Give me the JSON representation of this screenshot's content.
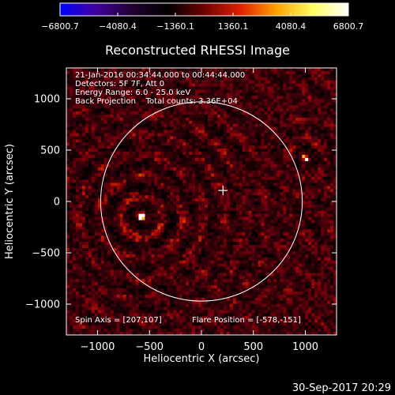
{
  "chart_data": {
    "type": "heatmap",
    "title": "Reconstructed RHESSI Image",
    "xlabel": "Heliocentric X (arcsec)",
    "ylabel": "Heliocentric Y (arcsec)",
    "xlim": [
      -1300,
      1300
    ],
    "ylim": [
      -1300,
      1300
    ],
    "xticks": [
      -1000,
      -500,
      0,
      500,
      1000
    ],
    "yticks": [
      -1000,
      -500,
      0,
      500,
      1000
    ],
    "xtick_labels": [
      "−1000",
      "−500",
      "0",
      "500",
      "1000"
    ],
    "ytick_labels": [
      "−1000",
      "−500",
      "0",
      "500",
      "1000"
    ],
    "colorbar": {
      "min": -6800.7,
      "max": 6800.7,
      "tick_values": [
        -6800.7,
        -4080.4,
        -1360.1,
        1360.1,
        4080.4,
        6800.7
      ],
      "tick_labels": [
        "−6800.7",
        "−4080.4",
        "−1360.1",
        "1360.1",
        "4080.4",
        "6800.7"
      ],
      "colors": [
        "#0000ff",
        "#40009a",
        "#200030",
        "#000000",
        "#700000",
        "#e02000",
        "#ffa000",
        "#ffff60",
        "#ffffff"
      ]
    },
    "annotations": [
      "21-Jan-2016 00:34:44.000 to 00:44:44.000",
      "Detectors: 5F 7F, Att 0",
      "Energy Range: 6.0 - 25.0 keV",
      "Back Projection    Total counts: 3.36E+04"
    ],
    "footer_left": "Spin Axis = [207,107]",
    "footer_right": "Flare Position = [-578,-151]",
    "solar_limb_radius": 970,
    "spin_axis": [
      207,
      107
    ],
    "flare_position": [
      -578,
      -151
    ],
    "secondary_source": [
      1000,
      420
    ]
  },
  "timestamp": "30-Sep-2017 20:29"
}
